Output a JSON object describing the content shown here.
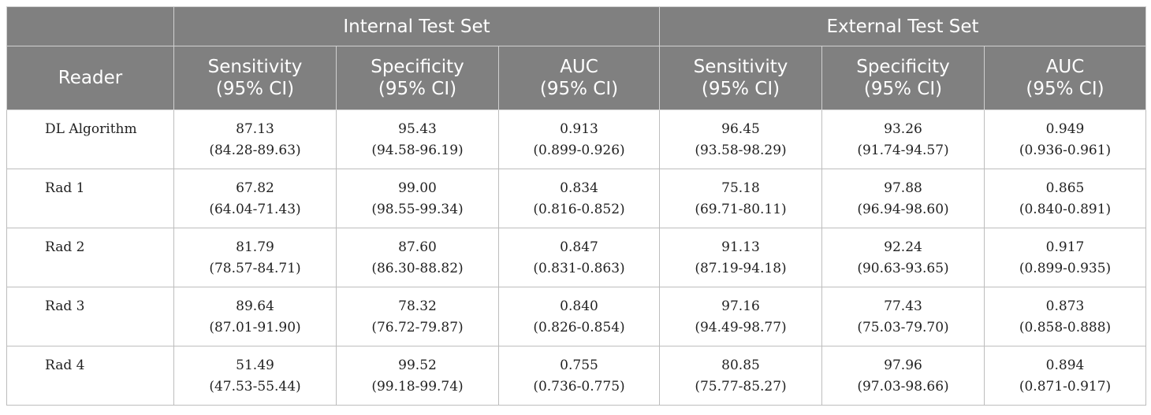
{
  "table": {
    "reader_header": "Reader",
    "groups": [
      "Internal Test Set",
      "External Test Set"
    ],
    "metrics": [
      "Sensitivity\n(95% CI)",
      "Specificity\n(95% CI)",
      "AUC\n(95% CI)",
      "Sensitivity\n(95% CI)",
      "Specificity\n(95% CI)",
      "AUC\n(95% CI)"
    ],
    "rows": [
      {
        "reader": "DL Algorithm",
        "cells": [
          {
            "value": "87.13",
            "ci": "(84.28-89.63)"
          },
          {
            "value": "95.43",
            "ci": "(94.58-96.19)"
          },
          {
            "value": "0.913",
            "ci": "(0.899-0.926)"
          },
          {
            "value": "96.45",
            "ci": "(93.58-98.29)"
          },
          {
            "value": "93.26",
            "ci": "(91.74-94.57)"
          },
          {
            "value": "0.949",
            "ci": "(0.936-0.961)"
          }
        ]
      },
      {
        "reader": "Rad 1",
        "cells": [
          {
            "value": "67.82",
            "ci": "(64.04-71.43)"
          },
          {
            "value": "99.00",
            "ci": "(98.55-99.34)"
          },
          {
            "value": "0.834",
            "ci": "(0.816-0.852)"
          },
          {
            "value": "75.18",
            "ci": "(69.71-80.11)"
          },
          {
            "value": "97.88",
            "ci": "(96.94-98.60)"
          },
          {
            "value": "0.865",
            "ci": "(0.840-0.891)"
          }
        ]
      },
      {
        "reader": "Rad 2",
        "cells": [
          {
            "value": "81.79",
            "ci": "(78.57-84.71)"
          },
          {
            "value": "87.60",
            "ci": "(86.30-88.82)"
          },
          {
            "value": "0.847",
            "ci": "(0.831-0.863)"
          },
          {
            "value": "91.13",
            "ci": "(87.19-94.18)"
          },
          {
            "value": "92.24",
            "ci": "(90.63-93.65)"
          },
          {
            "value": "0.917",
            "ci": "(0.899-0.935)"
          }
        ]
      },
      {
        "reader": "Rad 3",
        "cells": [
          {
            "value": "89.64",
            "ci": "(87.01-91.90)"
          },
          {
            "value": "78.32",
            "ci": "(76.72-79.87)"
          },
          {
            "value": "0.840",
            "ci": "(0.826-0.854)"
          },
          {
            "value": "97.16",
            "ci": "(94.49-98.77)"
          },
          {
            "value": "77.43",
            "ci": "(75.03-79.70)"
          },
          {
            "value": "0.873",
            "ci": "(0.858-0.888)"
          }
        ]
      },
      {
        "reader": "Rad 4",
        "cells": [
          {
            "value": "51.49",
            "ci": "(47.53-55.44)"
          },
          {
            "value": "99.52",
            "ci": "(99.18-99.74)"
          },
          {
            "value": "0.755",
            "ci": "(0.736-0.775)"
          },
          {
            "value": "80.85",
            "ci": "(75.77-85.27)"
          },
          {
            "value": "97.96",
            "ci": "(97.03-98.66)"
          },
          {
            "value": "0.894",
            "ci": "(0.871-0.917)"
          }
        ]
      }
    ]
  }
}
